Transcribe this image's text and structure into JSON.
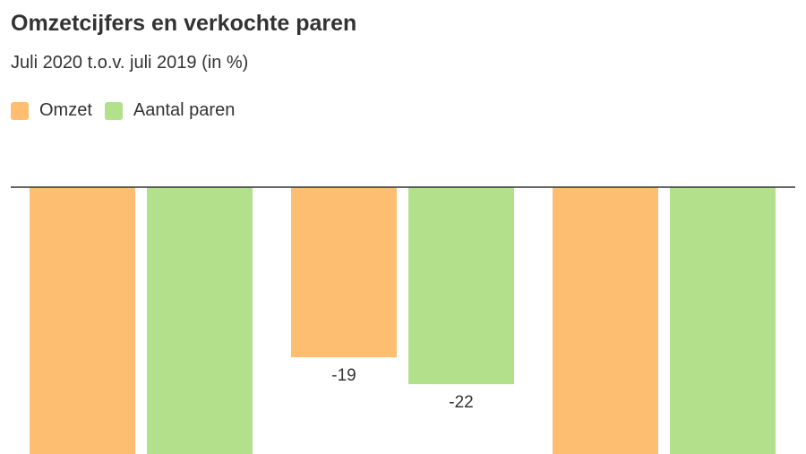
{
  "chart_data": {
    "type": "bar",
    "title": "Omzetcijfers en verkochte paren",
    "subtitle": "Juli 2020 t.o.v. juli 2019 (in %)",
    "categories": [
      "",
      "",
      ""
    ],
    "series": [
      {
        "name": "Omzet",
        "color": "#fdbe72",
        "values": [
          -30,
          -19,
          -30
        ]
      },
      {
        "name": "Aantal paren",
        "color": "#b2e08b",
        "values": [
          -30,
          -22,
          -30
        ]
      }
    ],
    "data_labels": [
      [
        "",
        "-19",
        ""
      ],
      [
        "",
        "-22",
        ""
      ]
    ],
    "ylim": [
      -30,
      0
    ],
    "grid": false,
    "legend_position": "top-left",
    "zero_line_color": "#333333"
  }
}
